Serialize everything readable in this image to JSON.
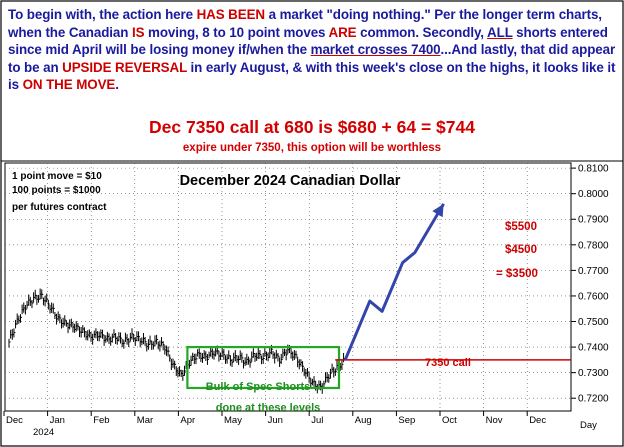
{
  "commentary": {
    "part1": "To begin with, the action here ",
    "emph1": "HAS BEEN",
    "part2": " a market \"doing nothing.\" Per the longer term charts, when the Canadian ",
    "emph2": "IS",
    "part3": " moving, 8 to 10 point moves ",
    "emph3": "ARE",
    "part4": " common. Secondly, ",
    "emph4": "ALL",
    "part5": " shorts entered since mid April will be losing money if/when the ",
    "emph5": "market crosses 7400",
    "part6": "...And lastly, that did appear to be an ",
    "emph6": "UPSIDE REVERSAL",
    "part7": " in early August, & with this week's close on the highs, it looks like it is ",
    "emph7": "ON THE MOVE",
    "part8": "."
  },
  "headline": "Dec 7350 call at 680 is $680 + 64 = $744",
  "subline": "expire under 7350, this option will be worthless",
  "colors": {
    "accent_blue": "#1a1a9e",
    "accent_red": "#d40000",
    "box_green": "#22a822",
    "arrow_blue": "#3344aa"
  },
  "chart_data": {
    "type": "bar",
    "title": "December 2024 Canadian Dollar",
    "info_lines": [
      "1 point move = $10",
      "100 points = $1000",
      "per futures contract"
    ],
    "y_ticks": [
      "0.8100",
      "0.8000",
      "0.7900",
      "0.7800",
      "0.7700",
      "0.7600",
      "0.7500",
      "0.7400",
      "0.7300",
      "0.7200"
    ],
    "ylim": [
      0.715,
      0.812
    ],
    "x_months": [
      "Dec",
      "Jan",
      "Feb",
      "Mar",
      "Apr",
      "May",
      "Jun",
      "Jul",
      "Aug",
      "Sep",
      "Oct",
      "Nov",
      "Dec"
    ],
    "year_label": "2024",
    "axis_corner_label": "Day",
    "series": [
      {
        "approx_closes": [
          [
            0,
            0.742
          ],
          [
            2,
            0.75
          ],
          [
            4,
            0.756
          ],
          [
            6,
            0.759
          ],
          [
            8,
            0.76
          ],
          [
            10,
            0.756
          ],
          [
            12,
            0.751
          ],
          [
            14,
            0.749
          ],
          [
            16,
            0.748
          ],
          [
            18,
            0.746
          ],
          [
            20,
            0.744
          ],
          [
            22,
            0.745
          ],
          [
            24,
            0.743
          ],
          [
            26,
            0.744
          ],
          [
            28,
            0.742
          ],
          [
            30,
            0.744
          ],
          [
            32,
            0.743
          ],
          [
            34,
            0.741
          ],
          [
            36,
            0.742
          ],
          [
            38,
            0.74
          ],
          [
            40,
            0.733
          ],
          [
            42,
            0.729
          ],
          [
            44,
            0.734
          ],
          [
            46,
            0.737
          ],
          [
            48,
            0.736
          ],
          [
            50,
            0.738
          ],
          [
            52,
            0.737
          ],
          [
            54,
            0.735
          ],
          [
            56,
            0.736
          ],
          [
            58,
            0.734
          ],
          [
            60,
            0.737
          ],
          [
            62,
            0.736
          ],
          [
            64,
            0.738
          ],
          [
            66,
            0.735
          ],
          [
            68,
            0.739
          ],
          [
            70,
            0.736
          ],
          [
            72,
            0.731
          ],
          [
            74,
            0.726
          ],
          [
            76,
            0.724
          ],
          [
            78,
            0.729
          ],
          [
            80,
            0.732
          ],
          [
            82,
            0.735
          ]
        ]
      }
    ],
    "projection_path": [
      [
        82,
        0.735
      ],
      [
        88,
        0.758
      ],
      [
        91,
        0.754
      ],
      [
        96,
        0.773
      ],
      [
        99,
        0.777
      ],
      [
        106,
        0.796
      ]
    ],
    "call_strike": {
      "value": 0.735,
      "label": "7350 call"
    },
    "targets": [
      "$5500",
      "$4500",
      "= $3500"
    ],
    "box": {
      "x": [
        44,
        80
      ],
      "y": [
        0.724,
        0.74
      ],
      "label": "Bulk of Spec Shorts",
      "below_label": "done at these levels"
    }
  }
}
